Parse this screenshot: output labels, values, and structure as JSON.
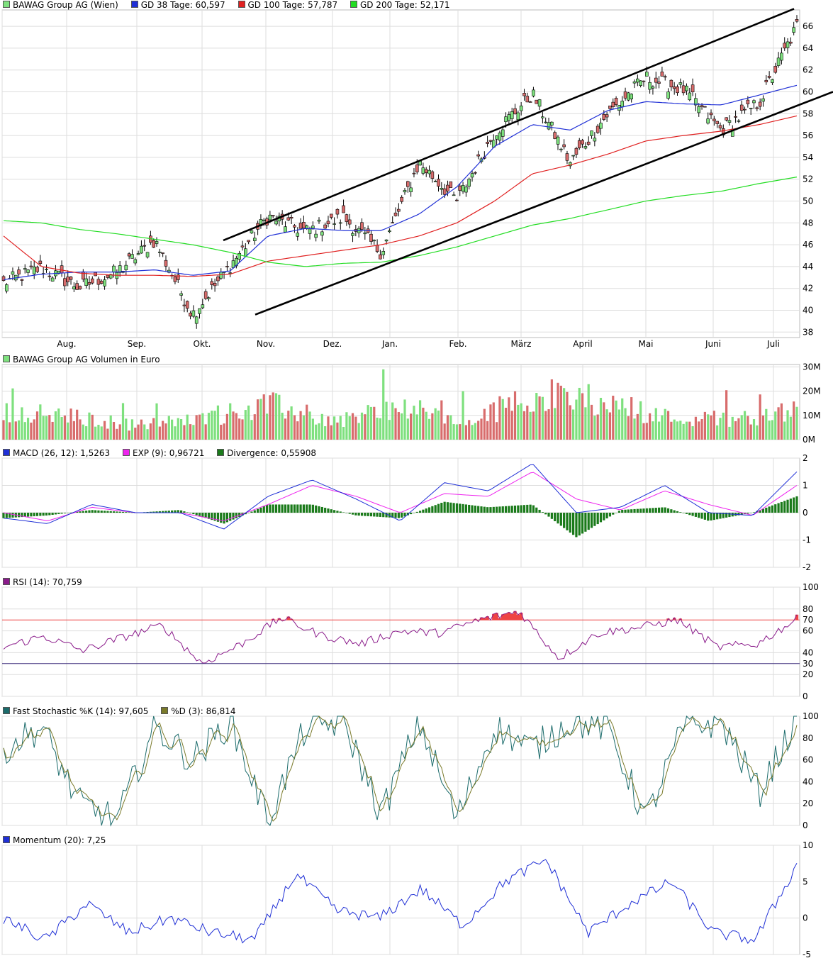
{
  "colors": {
    "up": "#7ee07e",
    "down": "#d86c6c",
    "gd38": "#1f2fd6",
    "gd100": "#e02020",
    "gd200": "#22dd22",
    "grid": "#dddddd",
    "channel": "#000000",
    "macd": "#1f2fd6",
    "exp": "#ee22ee",
    "divergence": "#1a7a1a",
    "rsi": "#8a1a8a",
    "rsi_fill": "#ee4444",
    "rsi70": "#ee4444",
    "rsi30": "#5555ee",
    "stoch_k": "#1b6b6b",
    "stoch_d": "#7a7a2a",
    "momentum": "#1f2fd6"
  },
  "panels": {
    "price": {
      "legend": [
        {
          "label": "BAWAG Group AG (Wien)",
          "color": "#7ee07e"
        },
        {
          "label": "GD 38 Tage: 60,597",
          "color": "#1f2fd6"
        },
        {
          "label": "GD 100 Tage: 57,787",
          "color": "#e02020"
        },
        {
          "label": "GD 200 Tage: 52,171",
          "color": "#22dd22"
        }
      ],
      "y_ticks": [
        "38",
        "40",
        "42",
        "44",
        "46",
        "48",
        "50",
        "52",
        "54",
        "56",
        "58",
        "60",
        "62",
        "64",
        "66"
      ]
    },
    "volume": {
      "legend": [
        {
          "label": "BAWAG Group AG Volumen in Euro",
          "color": "#7ee07e"
        }
      ],
      "y_ticks": [
        "0M",
        "10M",
        "20M",
        "30M"
      ]
    },
    "macd": {
      "legend": [
        {
          "label": "MACD (26, 12): 1,5263",
          "color": "#1f2fd6"
        },
        {
          "label": "EXP (9): 0,96721",
          "color": "#ee22ee"
        },
        {
          "label": "Divergence: 0,55908",
          "color": "#1a7a1a"
        }
      ],
      "y_ticks": [
        "-2",
        "-1",
        "0",
        "1",
        "2"
      ]
    },
    "rsi": {
      "legend": [
        {
          "label": "RSI (14): 70,759",
          "color": "#8a1a8a"
        }
      ],
      "y_ticks": [
        "0",
        "20",
        "40",
        "60",
        "80",
        "100"
      ],
      "level_labels": [
        "70",
        "30"
      ]
    },
    "stoch": {
      "legend": [
        {
          "label": "Fast Stochastic %K (14): 97,605",
          "color": "#1b6b6b"
        },
        {
          "label": "%D (3): 86,814",
          "color": "#7a7a2a"
        }
      ],
      "y_ticks": [
        "0",
        "20",
        "40",
        "60",
        "80",
        "100"
      ]
    },
    "momentum": {
      "legend": [
        {
          "label": "Momentum (20): 7,25",
          "color": "#1f2fd6"
        }
      ],
      "y_ticks": [
        "-5",
        "0",
        "5",
        "10"
      ]
    }
  },
  "x_labels": [
    "Aug.",
    "Sep.",
    "Okt.",
    "Nov.",
    "Dez.",
    "Jan.",
    "Feb.",
    "März",
    "April",
    "Mai",
    "Juni",
    "Juli"
  ],
  "chart_data": [
    {
      "type": "line",
      "title": "BAWAG Group AG (Wien)",
      "series": [
        {
          "name": "BAWAG Group AG (Wien)",
          "x": [
            "Jul",
            "Aug",
            "Sep",
            "Okt",
            "Okt",
            "Nov",
            "Nov",
            "Dez",
            "Jan",
            "Jan",
            "Feb",
            "Feb",
            "März",
            "März",
            "April",
            "April",
            "Mai",
            "Mai",
            "Juni",
            "Juni",
            "Juli",
            "Juli"
          ],
          "values": [
            42.5,
            43.9,
            42.1,
            43.5,
            46.4,
            39.6,
            44.1,
            48.6,
            47.2,
            48.5,
            45.3,
            53.5,
            50.0,
            56.3,
            59.8,
            53.5,
            58.0,
            61.3,
            60.2,
            56.5,
            59.0,
            66.0
          ]
        },
        {
          "name": "GD 38 Tage",
          "values": [
            42.8,
            43.3,
            43.5,
            43.5,
            43.7,
            43.2,
            43.6,
            46.8,
            47.5,
            47.3,
            47.3,
            48.8,
            51.3,
            55.0,
            57.0,
            56.5,
            58.3,
            59.1,
            58.9,
            58.8,
            59.7,
            60.6
          ]
        },
        {
          "name": "GD 100 Tage",
          "values": [
            46.8,
            44.0,
            43.4,
            43.2,
            43.2,
            43.1,
            43.3,
            44.5,
            45.0,
            45.5,
            46.0,
            46.8,
            48.0,
            50.0,
            52.5,
            53.3,
            54.3,
            55.5,
            56.0,
            56.4,
            57.0,
            57.8
          ]
        },
        {
          "name": "GD 200 Tage",
          "values": [
            48.2,
            48.0,
            47.4,
            47.0,
            46.5,
            46.0,
            45.3,
            44.4,
            44.0,
            44.3,
            44.4,
            45.0,
            45.8,
            46.8,
            47.8,
            48.4,
            49.2,
            50.0,
            50.5,
            50.9,
            51.6,
            52.2
          ]
        }
      ],
      "ylim": [
        37.5,
        67.5
      ],
      "annotations": [
        {
          "type": "trend-channel-upper",
          "from": [
            "Okt",
            46.4
          ],
          "to": [
            "Juli",
            67.6
          ]
        },
        {
          "type": "trend-channel-lower",
          "from": [
            "Nov",
            39.6
          ],
          "to": [
            "Juli",
            60.0
          ]
        }
      ]
    },
    {
      "type": "bar",
      "title": "BAWAG Group AG Volumen in Euro",
      "categories": [
        "Jul",
        "Aug",
        "Sep",
        "Okt",
        "Nov",
        "Dez",
        "Jan",
        "Feb",
        "März",
        "April",
        "Mai",
        "Juni",
        "Juli"
      ],
      "values_millions": [
        14,
        11,
        7,
        10,
        17,
        9,
        16,
        8,
        22,
        19,
        11,
        10,
        14
      ],
      "ylim": [
        0,
        30
      ]
    },
    {
      "type": "line",
      "title": "MACD (26, 12)",
      "series": [
        {
          "name": "MACD (26, 12)",
          "values": [
            -0.2,
            -0.4,
            0.3,
            0.0,
            0.0,
            -0.6,
            0.6,
            1.2,
            0.5,
            -0.3,
            1.1,
            0.8,
            1.8,
            0.0,
            0.2,
            1.0,
            0.0,
            -0.1,
            1.5
          ]
        },
        {
          "name": "EXP (9)",
          "values": [
            0.0,
            -0.3,
            0.2,
            0.0,
            0.0,
            -0.3,
            0.3,
            1.0,
            0.6,
            0.0,
            0.7,
            0.6,
            1.5,
            0.5,
            0.1,
            0.8,
            0.3,
            -0.1,
            1.0
          ]
        },
        {
          "name": "Divergence",
          "values": [
            -0.2,
            -0.1,
            0.1,
            0.0,
            0.1,
            -0.4,
            0.3,
            0.3,
            -0.1,
            -0.2,
            0.4,
            0.2,
            0.3,
            -0.9,
            0.1,
            0.2,
            -0.3,
            0.0,
            0.6
          ]
        }
      ],
      "ylim": [
        -2,
        2
      ]
    },
    {
      "type": "line",
      "title": "RSI (14)",
      "series": [
        {
          "name": "RSI (14)",
          "values": [
            45,
            55,
            42,
            54,
            65,
            30,
            48,
            72,
            56,
            48,
            60,
            58,
            70,
            78,
            35,
            58,
            63,
            70,
            45,
            48,
            70.8
          ]
        }
      ],
      "levels": [
        70,
        30
      ],
      "ylim": [
        0,
        100
      ]
    },
    {
      "type": "line",
      "title": "Fast Stochastic",
      "series": [
        {
          "name": "Fast Stochastic %K (14)",
          "values": [
            70,
            90,
            20,
            5,
            90,
            60,
            95,
            5,
            90,
            95,
            10,
            95,
            5,
            90,
            70,
            95,
            90,
            5,
            90,
            95,
            30,
            97.6
          ]
        },
        {
          "name": "%D (3)",
          "values": [
            65,
            85,
            25,
            10,
            85,
            62,
            90,
            10,
            85,
            92,
            15,
            90,
            10,
            85,
            72,
            92,
            88,
            8,
            85,
            92,
            35,
            86.8
          ]
        }
      ],
      "ylim": [
        0,
        100
      ]
    },
    {
      "type": "line",
      "title": "Momentum (20)",
      "series": [
        {
          "name": "Momentum (20)",
          "values": [
            0,
            -3,
            2,
            -2,
            0,
            -2,
            -3,
            6,
            1,
            0,
            4,
            -1,
            5,
            8,
            -2,
            2,
            5,
            -2,
            -3,
            7.25
          ]
        }
      ],
      "ylim": [
        -5,
        10
      ]
    }
  ]
}
